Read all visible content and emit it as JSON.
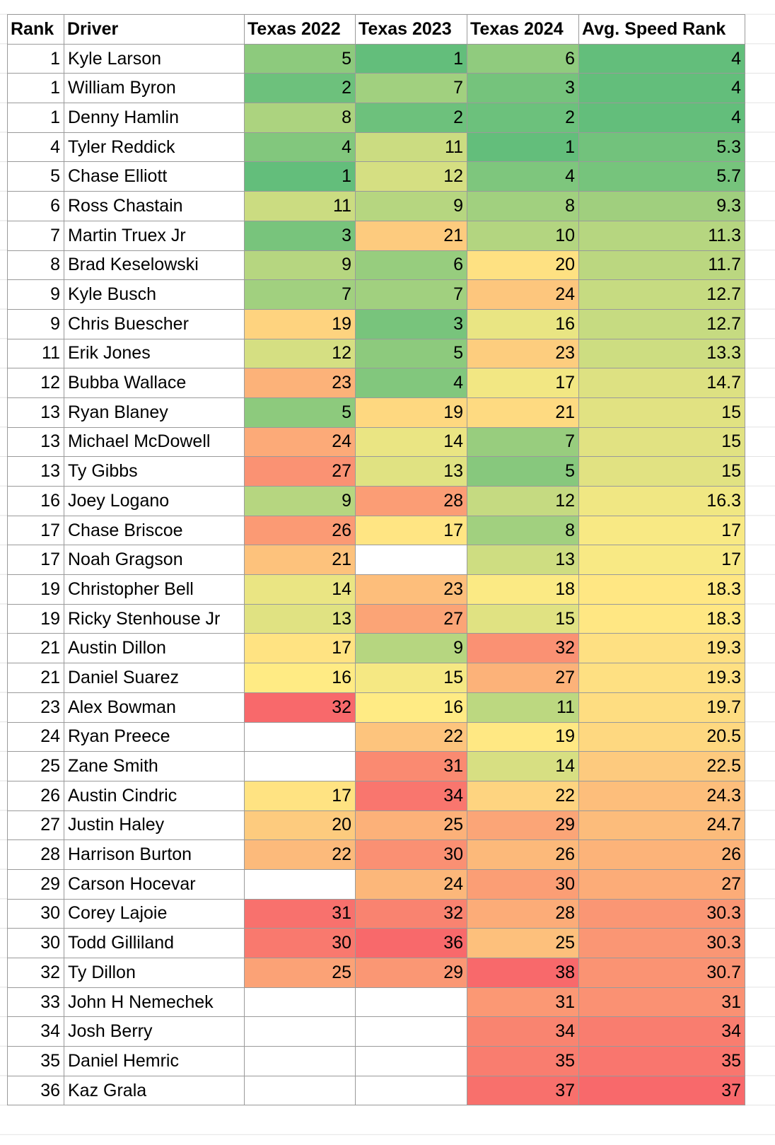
{
  "table": {
    "header": [
      "Rank",
      "Driver",
      "Texas 2022",
      "Texas 2023",
      "Texas 2024",
      "Avg. Speed Rank"
    ],
    "rows": [
      [
        1,
        "Kyle Larson",
        5,
        1,
        6,
        4
      ],
      [
        1,
        "William Byron",
        2,
        7,
        3,
        4
      ],
      [
        1,
        "Denny Hamlin",
        8,
        2,
        2,
        4
      ],
      [
        4,
        "Tyler Reddick",
        4,
        11,
        1,
        5.3
      ],
      [
        5,
        "Chase Elliott",
        1,
        12,
        4,
        5.7
      ],
      [
        6,
        "Ross Chastain",
        11,
        9,
        8,
        9.3
      ],
      [
        7,
        "Martin Truex Jr",
        3,
        21,
        10,
        11.3
      ],
      [
        8,
        "Brad Keselowski",
        9,
        6,
        20,
        11.7
      ],
      [
        9,
        "Kyle Busch",
        7,
        7,
        24,
        12.7
      ],
      [
        9,
        "Chris Buescher",
        19,
        3,
        16,
        12.7
      ],
      [
        11,
        "Erik Jones",
        12,
        5,
        23,
        13.3
      ],
      [
        12,
        "Bubba Wallace",
        23,
        4,
        17,
        14.7
      ],
      [
        13,
        "Ryan Blaney",
        5,
        19,
        21,
        15
      ],
      [
        13,
        "Michael McDowell",
        24,
        14,
        7,
        15
      ],
      [
        13,
        "Ty Gibbs",
        27,
        13,
        5,
        15
      ],
      [
        16,
        "Joey Logano",
        9,
        28,
        12,
        16.3
      ],
      [
        17,
        "Chase Briscoe",
        26,
        17,
        8,
        17
      ],
      [
        17,
        "Noah Gragson",
        21,
        null,
        13,
        17
      ],
      [
        19,
        "Christopher Bell",
        14,
        23,
        18,
        18.3
      ],
      [
        19,
        "Ricky Stenhouse Jr",
        13,
        27,
        15,
        18.3
      ],
      [
        21,
        "Austin Dillon",
        17,
        9,
        32,
        19.3
      ],
      [
        21,
        "Daniel Suarez",
        16,
        15,
        27,
        19.3
      ],
      [
        23,
        "Alex Bowman",
        32,
        16,
        11,
        19.7
      ],
      [
        24,
        "Ryan Preece",
        null,
        22,
        19,
        20.5
      ],
      [
        25,
        "Zane Smith",
        null,
        31,
        14,
        22.5
      ],
      [
        26,
        "Austin Cindric",
        17,
        34,
        22,
        24.3
      ],
      [
        27,
        "Justin Haley",
        20,
        25,
        29,
        24.7
      ],
      [
        28,
        "Harrison Burton",
        22,
        30,
        26,
        26
      ],
      [
        29,
        "Carson Hocevar",
        null,
        24,
        30,
        27
      ],
      [
        30,
        "Corey Lajoie",
        31,
        32,
        28,
        30.3
      ],
      [
        30,
        "Todd Gilliland",
        30,
        36,
        25,
        30.3
      ],
      [
        32,
        "Ty Dillon",
        25,
        29,
        38,
        30.7
      ],
      [
        33,
        "John H Nemechek",
        null,
        null,
        31,
        31
      ],
      [
        34,
        "Josh Berry",
        null,
        null,
        34,
        34
      ],
      [
        35,
        "Daniel Hemric",
        null,
        null,
        35,
        35
      ],
      [
        36,
        "Kaz Grala",
        null,
        null,
        37,
        37
      ]
    ]
  }
}
